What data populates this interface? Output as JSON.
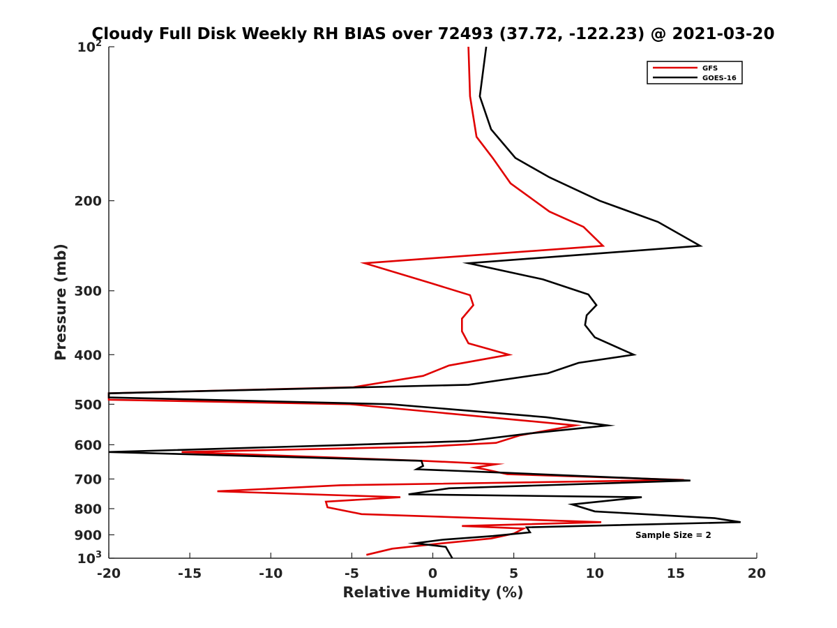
{
  "chart_data": {
    "type": "line",
    "title": "Cloudy Full Disk Weekly RH BIAS over 72493 (37.72, -122.23) @ 2021-03-20",
    "xlabel": "Relative Humidity (%)",
    "ylabel": "Pressure (mb)",
    "xlim": [
      -20,
      20
    ],
    "ylim": [
      100,
      1000
    ],
    "yscale": "log",
    "y_reversed": true,
    "x_ticks": [
      "-20",
      "-15",
      "-10",
      "-5",
      "0",
      "5",
      "10",
      "15",
      "20"
    ],
    "y_ticks": [
      {
        "value": 100,
        "base": "10",
        "exp": "2"
      },
      {
        "value": 200,
        "label": "200"
      },
      {
        "value": 300,
        "label": "300"
      },
      {
        "value": 400,
        "label": "400"
      },
      {
        "value": 500,
        "label": "500"
      },
      {
        "value": 600,
        "label": "600"
      },
      {
        "value": 700,
        "label": "700"
      },
      {
        "value": 800,
        "label": "800"
      },
      {
        "value": 900,
        "label": "900"
      },
      {
        "value": 1000,
        "base": "10",
        "exp": "3"
      }
    ],
    "grid": false,
    "legend_position": "top-right",
    "annotation": "Sample Size = 2",
    "series": [
      {
        "name": "GFS",
        "color": "#e00000",
        "points": [
          [
            2.2,
            100
          ],
          [
            2.3,
            125
          ],
          [
            2.7,
            150
          ],
          [
            3.7,
            165
          ],
          [
            4.8,
            185
          ],
          [
            7.2,
            210
          ],
          [
            9.3,
            225
          ],
          [
            10.5,
            245
          ],
          [
            -4.2,
            265
          ],
          [
            -0.1,
            290
          ],
          [
            2.3,
            306
          ],
          [
            2.5,
            320
          ],
          [
            1.8,
            340
          ],
          [
            1.8,
            360
          ],
          [
            2.2,
            380
          ],
          [
            4.7,
            400
          ],
          [
            1.0,
            420
          ],
          [
            -0.6,
            440
          ],
          [
            -4.9,
            463
          ],
          [
            -20,
            476
          ],
          [
            -20,
            490
          ],
          [
            -5.1,
            500
          ],
          [
            4.8,
            535
          ],
          [
            8.8,
            550
          ],
          [
            5.4,
            575
          ],
          [
            3.9,
            595
          ],
          [
            -0.4,
            605
          ],
          [
            -15.5,
            620
          ],
          [
            -0.6,
            645
          ],
          [
            3.9,
            655
          ],
          [
            2.6,
            665
          ],
          [
            3.2,
            670
          ],
          [
            4.6,
            685
          ],
          [
            15.5,
            703
          ],
          [
            -5.7,
            720
          ],
          [
            -13.3,
            740
          ],
          [
            -2.0,
            760
          ],
          [
            -6.6,
            775
          ],
          [
            -6.5,
            795
          ],
          [
            -4.4,
            820
          ],
          [
            10.4,
            850
          ],
          [
            1.8,
            865
          ],
          [
            5.6,
            875
          ],
          [
            5.0,
            895
          ],
          [
            4.3,
            905
          ],
          [
            3.6,
            915
          ],
          [
            0.6,
            935
          ],
          [
            -2.5,
            958
          ],
          [
            -4.1,
            985
          ]
        ]
      },
      {
        "name": "GOES-16",
        "color": "#000000",
        "points": [
          [
            3.3,
            100
          ],
          [
            2.9,
            125
          ],
          [
            3.6,
            145
          ],
          [
            5.1,
            165
          ],
          [
            7.2,
            180
          ],
          [
            10.3,
            200
          ],
          [
            13.9,
            220
          ],
          [
            16.5,
            245
          ],
          [
            2.2,
            265
          ],
          [
            6.8,
            285
          ],
          [
            9.6,
            305
          ],
          [
            10.1,
            320
          ],
          [
            9.5,
            335
          ],
          [
            9.4,
            350
          ],
          [
            10.0,
            370
          ],
          [
            12.4,
            400
          ],
          [
            9.0,
            415
          ],
          [
            7.1,
            435
          ],
          [
            2.2,
            458
          ],
          [
            -20,
            476
          ],
          [
            -20,
            485
          ],
          [
            -2.6,
            500
          ],
          [
            7.0,
            530
          ],
          [
            10.8,
            550
          ],
          [
            6.0,
            570
          ],
          [
            2.2,
            590
          ],
          [
            -4.9,
            600
          ],
          [
            -20,
            620
          ],
          [
            -0.7,
            645
          ],
          [
            -0.6,
            660
          ],
          [
            -1.0,
            670
          ],
          [
            4.1,
            680
          ],
          [
            15.9,
            705
          ],
          [
            1.0,
            730
          ],
          [
            -1.5,
            750
          ],
          [
            12.9,
            760
          ],
          [
            8.6,
            785
          ],
          [
            10.0,
            810
          ],
          [
            17.4,
            835
          ],
          [
            19.0,
            850
          ],
          [
            5.8,
            870
          ],
          [
            6.0,
            890
          ],
          [
            3.7,
            905
          ],
          [
            0.6,
            920
          ],
          [
            -1.1,
            935
          ],
          [
            0.8,
            950
          ],
          [
            1.2,
            1000
          ]
        ]
      }
    ]
  }
}
